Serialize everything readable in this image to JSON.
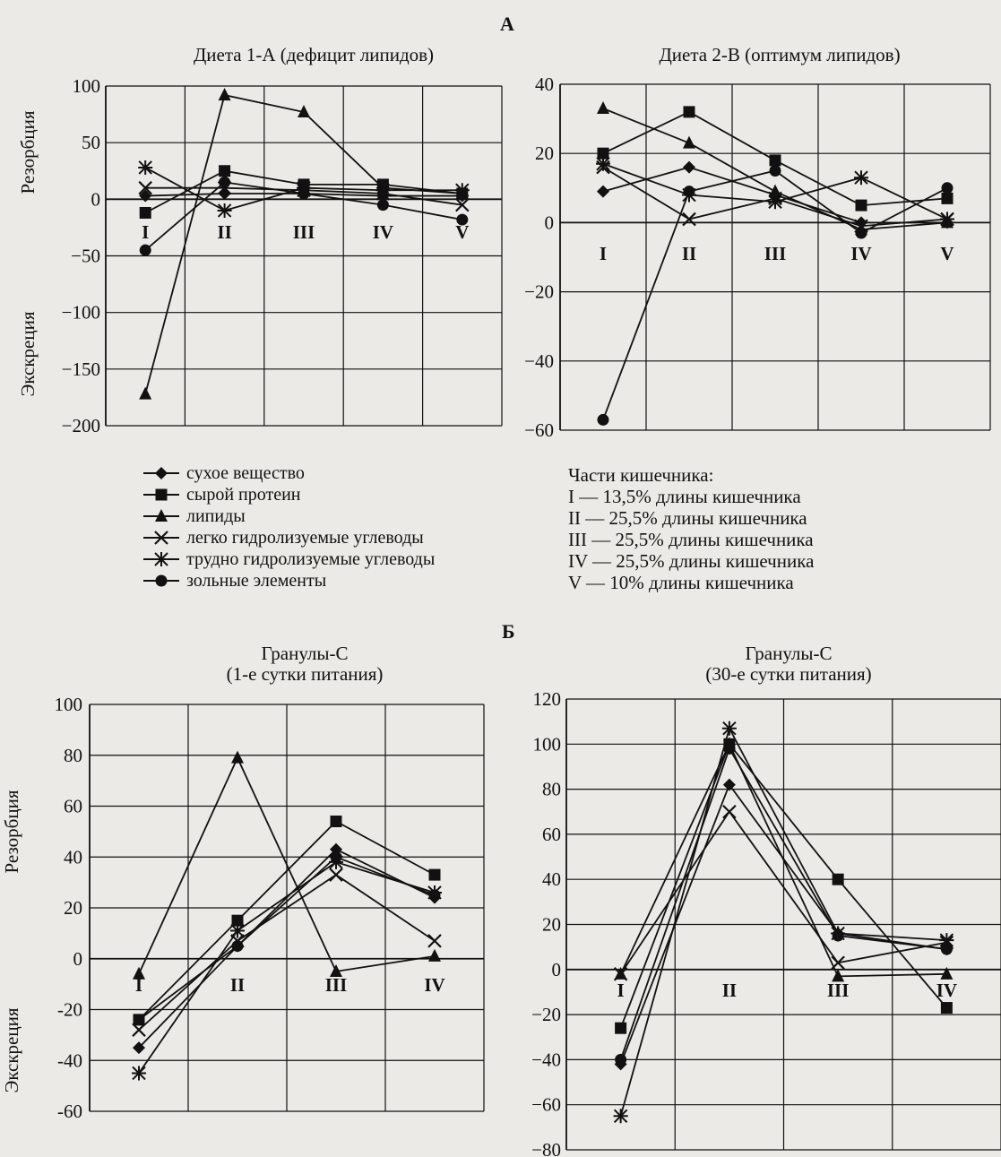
{
  "section_a": "А",
  "section_b": "Б",
  "legend": [
    {
      "key": "dm",
      "label": "сухое вещество",
      "marker": "diamond"
    },
    {
      "key": "cp",
      "label": "сырой протеин",
      "marker": "square"
    },
    {
      "key": "lip",
      "label": "липиды",
      "marker": "triangle"
    },
    {
      "key": "ehc",
      "label": "легко гидролизуемые углеводы",
      "marker": "x"
    },
    {
      "key": "hhc",
      "label": "трудно гидролизуемые углеводы",
      "marker": "asterisk"
    },
    {
      "key": "ash",
      "label": "зольные элементы",
      "marker": "circle"
    }
  ],
  "parts": {
    "title": "Части кишечника:",
    "items": [
      "I — 13,5% длины кишечника",
      "II — 25,5% длины кишечника",
      "III — 25,5% длины кишечника",
      "IV — 25,5% длины кишечника",
      "V — 10% длины кишечника"
    ]
  },
  "chart_data": [
    {
      "type": "line",
      "title": "Диета 1-А (дефицит липидов)",
      "ylabel_top": "Резорбция",
      "ylabel_bottom": "Экскреция",
      "ylim": [
        -200,
        100
      ],
      "yticks": [
        100,
        50,
        0,
        -50,
        -100,
        -150,
        -200
      ],
      "ytick_labels": [
        "100",
        "50",
        "0",
        "−50",
        "−100",
        "−150",
        "−200"
      ],
      "categories": [
        "I",
        "II",
        "III",
        "IV",
        "V"
      ],
      "series": [
        {
          "name": "сухое вещество",
          "values": [
            3,
            5,
            5,
            3,
            3
          ]
        },
        {
          "name": "сырой протеин",
          "values": [
            -12,
            25,
            13,
            13,
            5
          ]
        },
        {
          "name": "липиды",
          "values": [
            -172,
            92,
            77,
            10,
            5
          ]
        },
        {
          "name": "легко гидролизуемые углеводы",
          "values": [
            10,
            10,
            8,
            5,
            -5
          ]
        },
        {
          "name": "трудно гидролизуемые углеводы",
          "values": [
            28,
            -10,
            10,
            8,
            8
          ]
        },
        {
          "name": "зольные элементы",
          "values": [
            -45,
            15,
            5,
            -5,
            -18
          ]
        }
      ]
    },
    {
      "type": "line",
      "title": "Диета 2-В (оптимум липидов)",
      "ylim": [
        -60,
        40
      ],
      "yticks": [
        40,
        20,
        0,
        -20,
        -40,
        -60
      ],
      "ytick_labels": [
        "40",
        "20",
        "0",
        "−20",
        "−40",
        "−60"
      ],
      "categories": [
        "I",
        "II",
        "III",
        "IV",
        "V"
      ],
      "series": [
        {
          "name": "сухое вещество",
          "values": [
            9,
            16,
            8,
            0,
            0
          ]
        },
        {
          "name": "сырой протеин",
          "values": [
            20,
            32,
            18,
            5,
            7
          ]
        },
        {
          "name": "липиды",
          "values": [
            33,
            23,
            9,
            -2,
            0
          ]
        },
        {
          "name": "легко гидролизуемые углеводы",
          "values": [
            16,
            1,
            7,
            -1,
            1
          ]
        },
        {
          "name": "трудно гидролизуемые углеводы",
          "values": [
            17,
            8,
            6,
            13,
            1
          ]
        },
        {
          "name": "зольные элементы",
          "values": [
            -57,
            9,
            15,
            -3,
            10
          ]
        }
      ]
    },
    {
      "type": "line",
      "title": "Гранулы-С\n(1-е сутки питания)",
      "ylabel_top": "Резорбция",
      "ylabel_bottom": "Экскреция",
      "ylim": [
        -60,
        100
      ],
      "yticks": [
        100,
        80,
        60,
        40,
        20,
        0,
        -20,
        -40,
        -60
      ],
      "ytick_labels": [
        "100",
        "80",
        "60",
        "40",
        "20",
        "0",
        "-20",
        "-40",
        "-60"
      ],
      "categories": [
        "I",
        "II",
        "III",
        "IV"
      ],
      "series": [
        {
          "name": "сухое вещество",
          "values": [
            -35,
            5,
            43,
            24
          ]
        },
        {
          "name": "сырой протеин",
          "values": [
            -24,
            15,
            54,
            33
          ]
        },
        {
          "name": "липиды",
          "values": [
            -6,
            79,
            -5,
            1
          ]
        },
        {
          "name": "легко гидролизуемые углеводы",
          "values": [
            -28,
            7,
            33,
            7
          ]
        },
        {
          "name": "трудно гидролизуемые углеводы",
          "values": [
            -45,
            11,
            38,
            26
          ]
        },
        {
          "name": "зольные элементы",
          "values": [
            -24,
            5,
            40,
            25
          ]
        }
      ]
    },
    {
      "type": "line",
      "title": "Гранулы-С\n(30-е сутки питания)",
      "ylim": [
        -80,
        120
      ],
      "yticks": [
        120,
        100,
        80,
        60,
        40,
        20,
        0,
        -20,
        -40,
        -60,
        -80
      ],
      "ytick_labels": [
        "120",
        "100",
        "80",
        "60",
        "40",
        "20",
        "0",
        "−20",
        "−40",
        "−60",
        "−80"
      ],
      "categories": [
        "I",
        "II",
        "III",
        "IV"
      ],
      "series": [
        {
          "name": "сухое вещество",
          "values": [
            -42,
            82,
            16,
            9
          ]
        },
        {
          "name": "сырой протеин",
          "values": [
            -26,
            100,
            40,
            -17
          ]
        },
        {
          "name": "липиды",
          "values": [
            -2,
            100,
            -3,
            -2
          ]
        },
        {
          "name": "легко гидролизуемые углеводы",
          "values": [
            -2,
            70,
            3,
            12
          ]
        },
        {
          "name": "трудно гидролизуемые углеводы",
          "values": [
            -65,
            107,
            16,
            13
          ]
        },
        {
          "name": "зольные элементы",
          "values": [
            -40,
            98,
            15,
            9
          ]
        }
      ]
    }
  ]
}
